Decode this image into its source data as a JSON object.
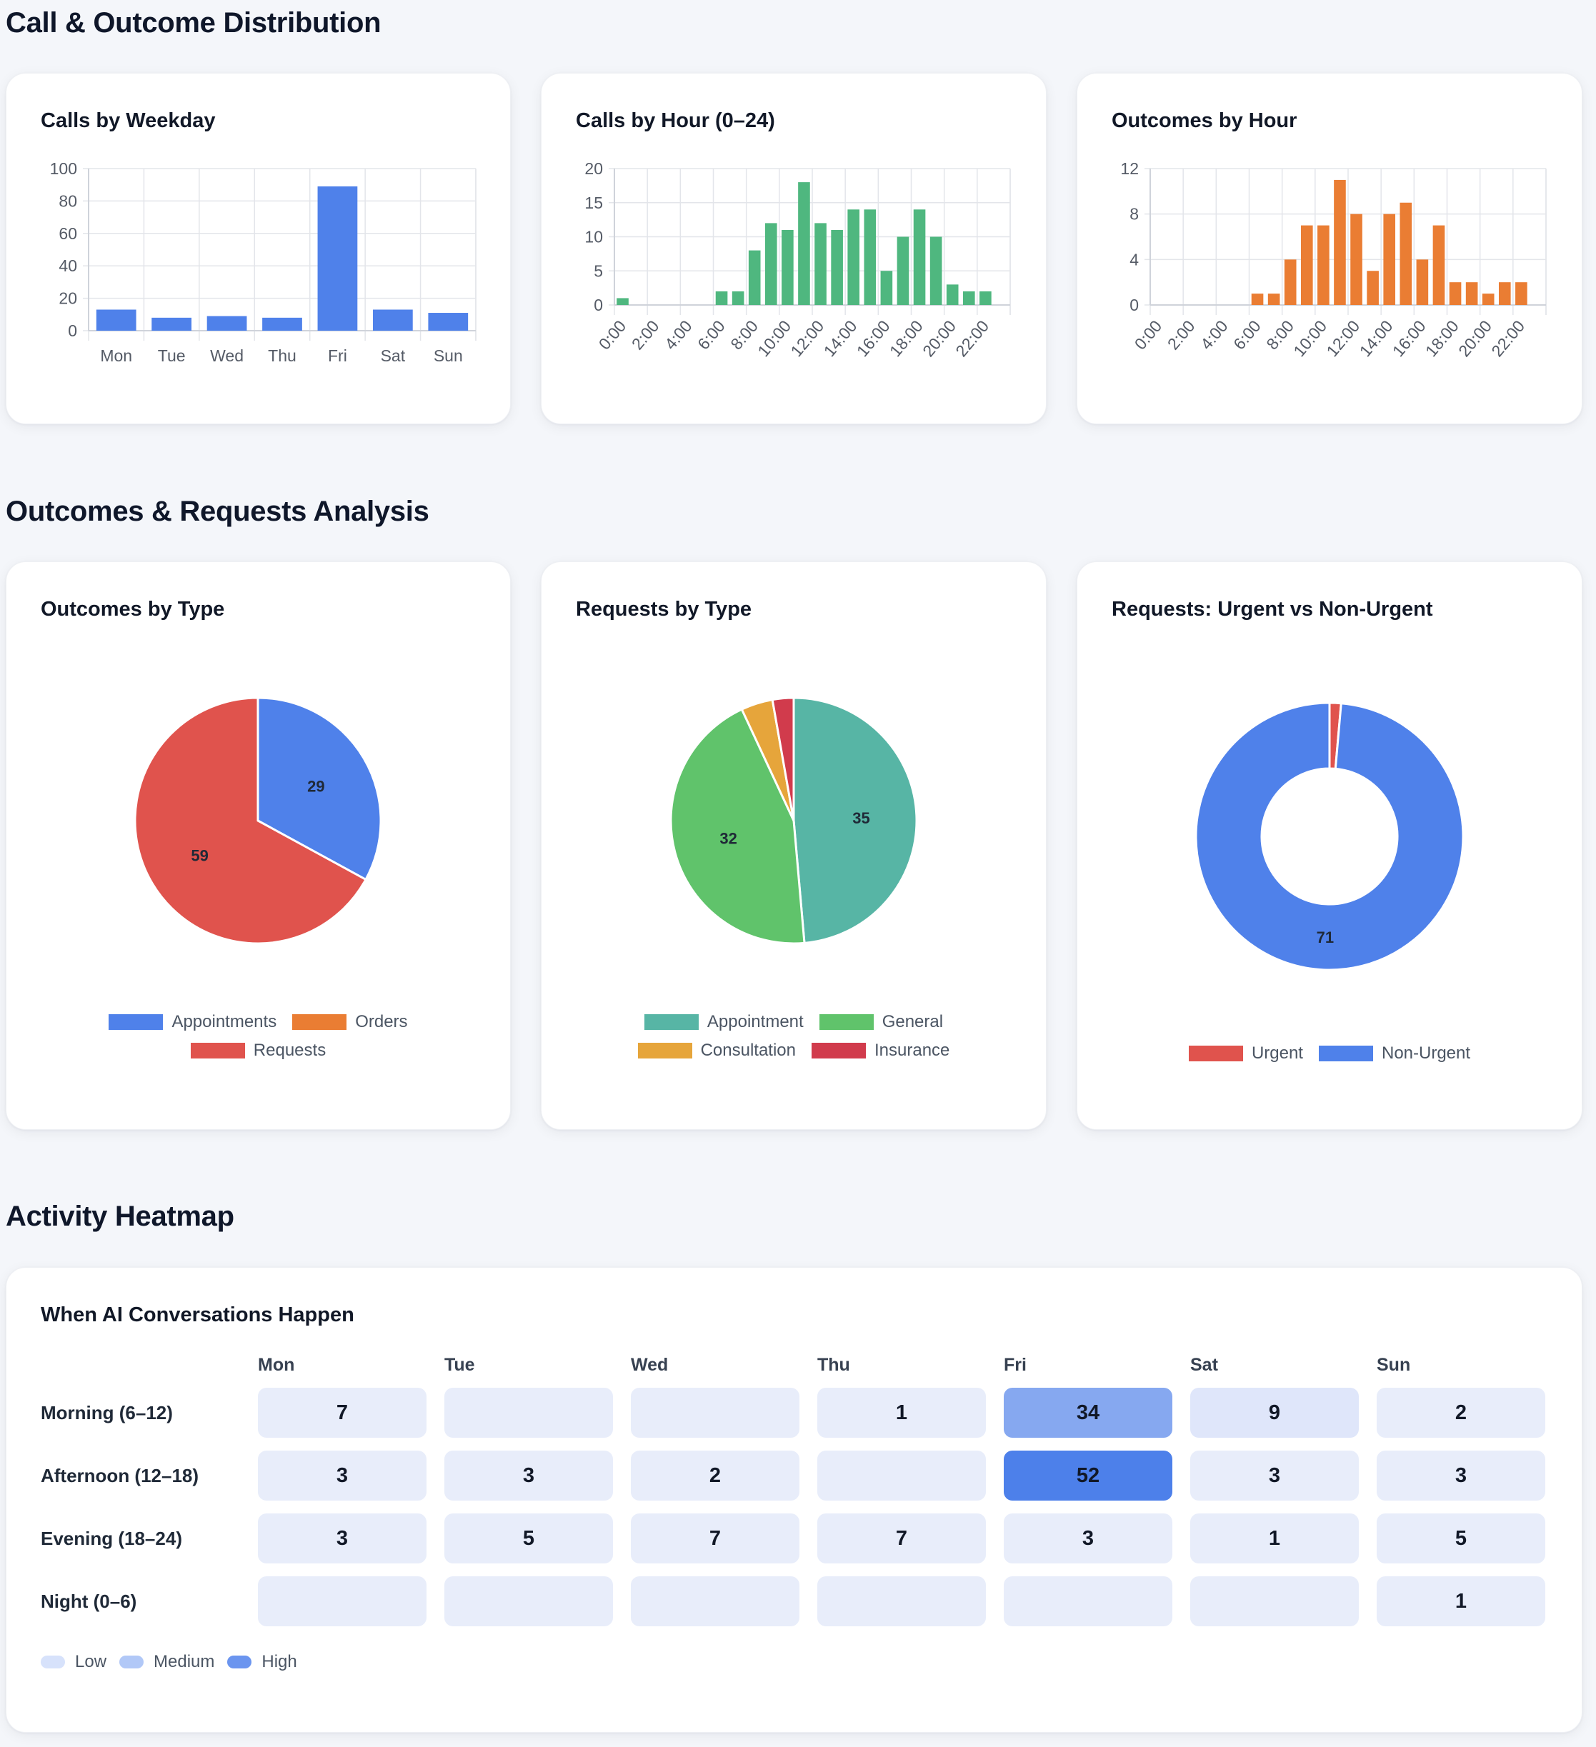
{
  "sections": {
    "distribution": "Call & Outcome Distribution",
    "analysis": "Outcomes & Requests Analysis",
    "heatmap": "Activity Heatmap"
  },
  "cards": {
    "weekday": "Calls by Weekday",
    "hour": "Calls by Hour (0–24)",
    "outcomes_hour": "Outcomes by Hour",
    "outcomes_type": "Outcomes by Type",
    "requests_type": "Requests by Type",
    "urgent": "Requests: Urgent vs Non-Urgent",
    "heatmap": "When AI Conversations Happen"
  },
  "chart_data": [
    {
      "type": "bar",
      "title": "Calls by Weekday",
      "categories": [
        "Mon",
        "Tue",
        "Wed",
        "Thu",
        "Fri",
        "Sat",
        "Sun"
      ],
      "values": [
        13,
        8,
        9,
        8,
        89,
        13,
        11
      ],
      "ylim": [
        0,
        100
      ],
      "yticks": [
        0,
        20,
        40,
        60,
        80,
        100
      ],
      "color": "#4f81ea",
      "grid": true
    },
    {
      "type": "bar",
      "title": "Calls by Hour (0–24)",
      "categories": [
        "0:00",
        "1:00",
        "2:00",
        "3:00",
        "4:00",
        "5:00",
        "6:00",
        "7:00",
        "8:00",
        "9:00",
        "10:00",
        "11:00",
        "12:00",
        "13:00",
        "14:00",
        "15:00",
        "16:00",
        "17:00",
        "18:00",
        "19:00",
        "20:00",
        "21:00",
        "22:00",
        "23:00"
      ],
      "tick_labels": [
        "0:00",
        "2:00",
        "4:00",
        "6:00",
        "8:00",
        "10:00",
        "12:00",
        "14:00",
        "16:00",
        "18:00",
        "20:00",
        "22:00"
      ],
      "values": [
        1,
        0,
        0,
        0,
        0,
        0,
        2,
        2,
        8,
        12,
        11,
        18,
        12,
        11,
        14,
        14,
        5,
        10,
        14,
        10,
        3,
        2,
        2,
        0
      ],
      "ylim": [
        0,
        20
      ],
      "yticks": [
        0,
        5,
        10,
        15,
        20
      ],
      "color": "#4fb77f",
      "grid": true
    },
    {
      "type": "bar",
      "title": "Outcomes by Hour",
      "categories": [
        "0:00",
        "1:00",
        "2:00",
        "3:00",
        "4:00",
        "5:00",
        "6:00",
        "7:00",
        "8:00",
        "9:00",
        "10:00",
        "11:00",
        "12:00",
        "13:00",
        "14:00",
        "15:00",
        "16:00",
        "17:00",
        "18:00",
        "19:00",
        "20:00",
        "21:00",
        "22:00",
        "23:00"
      ],
      "tick_labels": [
        "0:00",
        "2:00",
        "4:00",
        "6:00",
        "8:00",
        "10:00",
        "12:00",
        "14:00",
        "16:00",
        "18:00",
        "20:00",
        "22:00"
      ],
      "values": [
        0,
        0,
        0,
        0,
        0,
        0,
        1,
        1,
        4,
        7,
        7,
        11,
        8,
        3,
        8,
        9,
        4,
        7,
        2,
        2,
        1,
        2,
        2,
        0
      ],
      "ylim": [
        0,
        12
      ],
      "yticks": [
        0,
        4,
        8,
        12
      ],
      "color": "#ea7d33",
      "grid": true
    },
    {
      "type": "pie",
      "title": "Outcomes by Type",
      "series": [
        {
          "name": "Appointments",
          "value": 29,
          "color": "#4f81ea"
        },
        {
          "name": "Orders",
          "value": 0,
          "color": "#ea7d33"
        },
        {
          "name": "Requests",
          "value": 59,
          "color": "#e0534d"
        }
      ],
      "legend_rows": [
        [
          "Appointments",
          "Orders"
        ],
        [
          "Requests"
        ]
      ]
    },
    {
      "type": "pie",
      "title": "Requests by Type",
      "series": [
        {
          "name": "Appointment",
          "value": 35,
          "color": "#57b5a5"
        },
        {
          "name": "General",
          "value": 32,
          "color": "#60c36b"
        },
        {
          "name": "Consultation",
          "value": 3,
          "color": "#e6a53b"
        },
        {
          "name": "Insurance",
          "value": 2,
          "color": "#d13b4c"
        }
      ],
      "legend_rows": [
        [
          "Appointment",
          "General"
        ],
        [
          "Consultation",
          "Insurance"
        ]
      ]
    },
    {
      "type": "pie",
      "subtype": "doughnut",
      "title": "Requests: Urgent vs Non-Urgent",
      "series": [
        {
          "name": "Urgent",
          "value": 1,
          "color": "#e0534d"
        },
        {
          "name": "Non-Urgent",
          "value": 71,
          "color": "#4f81ea"
        }
      ],
      "legend_rows": [
        [
          "Urgent",
          "Non-Urgent"
        ]
      ]
    },
    {
      "type": "heatmap",
      "title": "When AI Conversations Happen",
      "columns": [
        "Mon",
        "Tue",
        "Wed",
        "Thu",
        "Fri",
        "Sat",
        "Sun"
      ],
      "rows": [
        {
          "label": "Morning (6–12)",
          "values": [
            7,
            null,
            null,
            1,
            34,
            9,
            2
          ]
        },
        {
          "label": "Afternoon (12–18)",
          "values": [
            3,
            3,
            2,
            null,
            52,
            3,
            3
          ]
        },
        {
          "label": "Evening (18–24)",
          "values": [
            3,
            5,
            7,
            7,
            3,
            1,
            5
          ]
        },
        {
          "label": "Night (0–6)",
          "values": [
            null,
            null,
            null,
            null,
            null,
            null,
            1
          ]
        }
      ],
      "legend": [
        {
          "label": "Low",
          "color": "#d7e2fb"
        },
        {
          "label": "Medium",
          "color": "#b1c8f7"
        },
        {
          "label": "High",
          "color": "#6b95ef"
        }
      ]
    }
  ]
}
